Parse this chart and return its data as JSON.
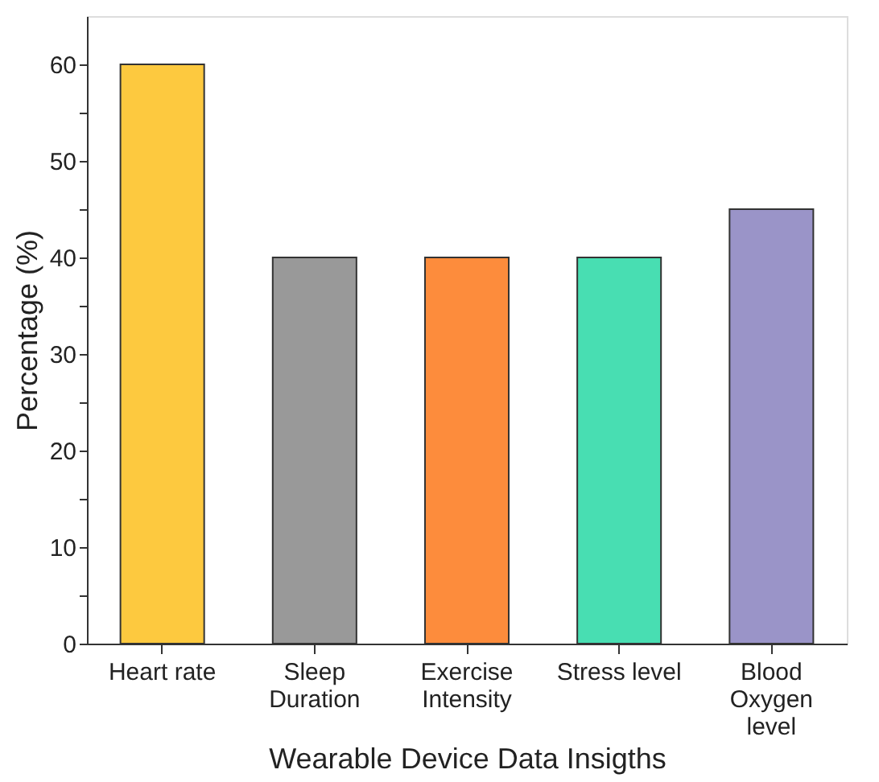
{
  "chart_data": {
    "type": "bar",
    "xlabel": "Wearable Device Data Insigths",
    "ylabel": "Percentage (%)",
    "categories": [
      "Heart rate",
      "Sleep\nDuration",
      "Exercise\nIntensity",
      "Stress level",
      "Blood\nOxygen\nlevel"
    ],
    "values": [
      60,
      40,
      40,
      40,
      45
    ],
    "colors": [
      "#fdc93f",
      "#999999",
      "#fd8c3c",
      "#48deb2",
      "#9a94c8"
    ],
    "ylim": [
      0,
      65
    ],
    "yticks": [
      0,
      {
        "value": 5,
        "label": null
      },
      10,
      {
        "value": 15,
        "label": null
      },
      20,
      {
        "value": 25,
        "label": null
      },
      30,
      {
        "value": 35,
        "label": null
      },
      40,
      {
        "value": 45,
        "label": null
      },
      50,
      {
        "value": 55,
        "label": null
      },
      60
    ],
    "grid": false,
    "legend": false
  }
}
